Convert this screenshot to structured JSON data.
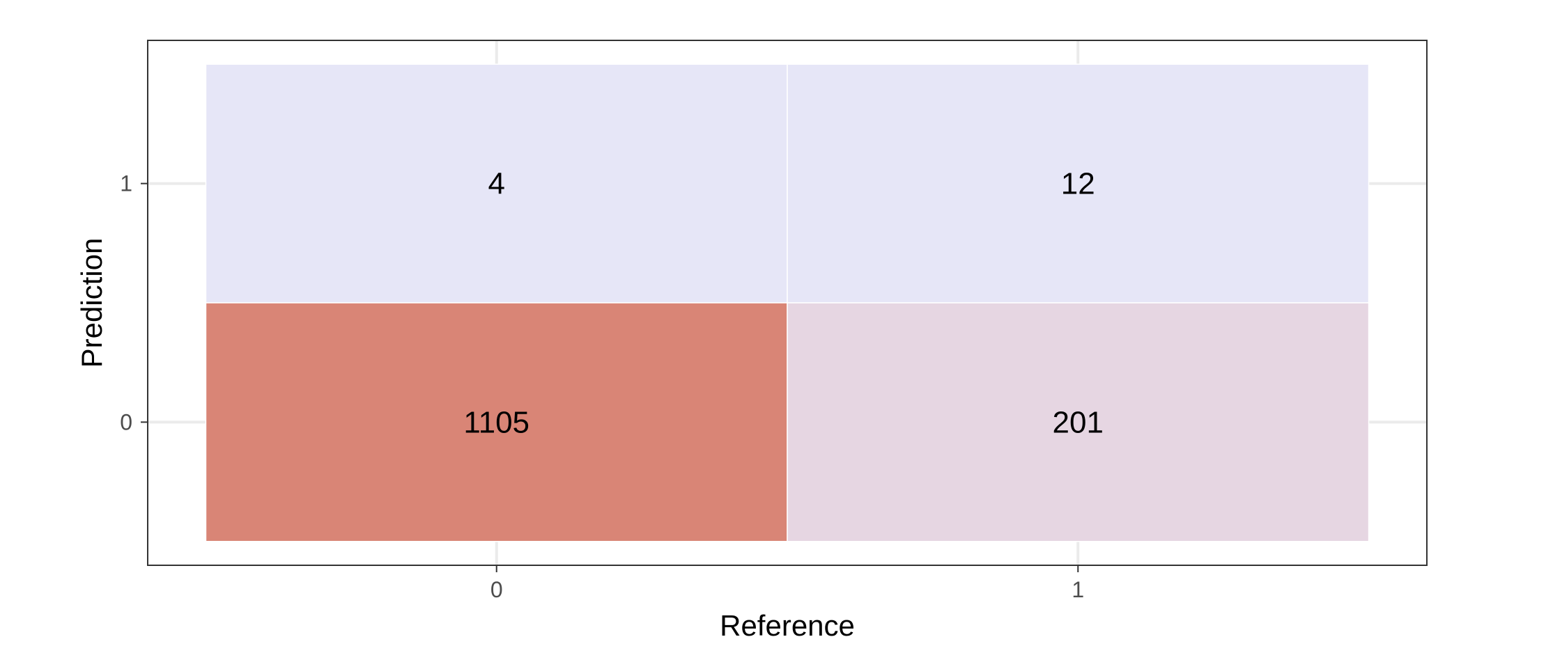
{
  "chart_data": {
    "type": "heatmap",
    "title": "",
    "xlabel": "Reference",
    "ylabel": "Prediction",
    "x_categories": [
      "0",
      "1"
    ],
    "y_categories": [
      "0",
      "1"
    ],
    "cells": [
      {
        "reference": "0",
        "prediction": "1",
        "value": 4,
        "label": "4",
        "color": "#e6e6f7"
      },
      {
        "reference": "1",
        "prediction": "1",
        "value": 12,
        "label": "12",
        "color": "#e6e6f7"
      },
      {
        "reference": "0",
        "prediction": "0",
        "value": 1105,
        "label": "1105",
        "color": "#d98576"
      },
      {
        "reference": "1",
        "prediction": "0",
        "value": 201,
        "label": "201",
        "color": "#e6d6e2"
      }
    ],
    "grid": true,
    "legend": "none"
  }
}
